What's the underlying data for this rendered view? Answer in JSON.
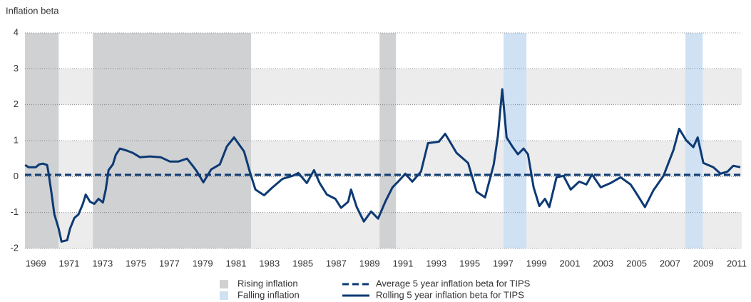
{
  "chart_data": {
    "type": "line",
    "y_label": "Inflation beta",
    "xlim": [
      1968.35,
      2011.3
    ],
    "xticks": [
      1969,
      1971,
      1973,
      1975,
      1977,
      1979,
      1981,
      1983,
      1985,
      1987,
      1989,
      1991,
      1993,
      1995,
      1997,
      1999,
      2001,
      2003,
      2005,
      2007,
      2009,
      2011
    ],
    "ylim": [
      -2,
      4
    ],
    "yticks": [
      -2,
      -1,
      0,
      1,
      2,
      3,
      4
    ],
    "grid": true,
    "banded": true,
    "shaded": [
      {
        "name": "Rising inflation",
        "color": "#d0d1d3",
        "ranges": [
          [
            1968.35,
            1970.37
          ],
          [
            1972.42,
            1981.9
          ],
          [
            1989.6,
            1990.58
          ]
        ]
      },
      {
        "name": "Falling inflation",
        "color": "#cfe1f3",
        "ranges": [
          [
            1997.03,
            1998.4
          ],
          [
            2007.93,
            2008.96
          ]
        ]
      }
    ],
    "series": [
      {
        "name": "Average 5 year inflation beta for TIPS",
        "color": "#0d3a73",
        "style": "dashed",
        "value": 0.05
      },
      {
        "name": "Rolling 5 year inflation beta for TIPS",
        "color": "#0d3a73",
        "style": "solid",
        "x": [
          1968.36,
          1968.57,
          1969.0,
          1969.21,
          1969.43,
          1969.68,
          1969.77,
          1969.94,
          1970.11,
          1970.37,
          1970.54,
          1970.88,
          1971.05,
          1971.31,
          1971.56,
          1971.82,
          1971.99,
          1972.25,
          1972.5,
          1972.76,
          1973.02,
          1973.19,
          1973.36,
          1973.62,
          1973.79,
          1974.04,
          1974.47,
          1974.81,
          1975.24,
          1975.84,
          1976.48,
          1977.03,
          1977.55,
          1978.06,
          1978.4,
          1978.66,
          1979.04,
          1979.51,
          1980.03,
          1980.45,
          1980.88,
          1981.48,
          1981.82,
          1982.16,
          1982.68,
          1983.19,
          1983.79,
          1984.38,
          1984.73,
          1985.24,
          1985.67,
          1986.01,
          1986.44,
          1986.95,
          1987.29,
          1987.72,
          1987.89,
          1988.23,
          1988.66,
          1989.09,
          1989.51,
          1989.94,
          1990.37,
          1990.79,
          1991.14,
          1991.56,
          1992.08,
          1992.5,
          1993.15,
          1993.53,
          1994.21,
          1994.9,
          1995.41,
          1995.92,
          1996.44,
          1996.69,
          1996.95,
          1997.21,
          1997.55,
          1997.89,
          1998.23,
          1998.49,
          1998.83,
          1999.17,
          1999.51,
          1999.77,
          2000.2,
          2000.62,
          2001.05,
          2001.56,
          2001.99,
          2002.33,
          2002.85,
          2003.44,
          2004.04,
          2004.64,
          2004.98,
          2005.5,
          2006.01,
          2006.61,
          2007.21,
          2007.55,
          2007.97,
          2008.4,
          2008.66,
          2009.0,
          2009.6,
          2010.03,
          2010.45,
          2010.79,
          2011.22
        ],
        "values": [
          0.32,
          0.26,
          0.26,
          0.34,
          0.36,
          0.32,
          0.08,
          -0.46,
          -1.05,
          -1.45,
          -1.81,
          -1.77,
          -1.45,
          -1.15,
          -1.05,
          -0.76,
          -0.5,
          -0.7,
          -0.76,
          -0.62,
          -0.72,
          -0.36,
          0.18,
          0.34,
          0.6,
          0.78,
          0.72,
          0.66,
          0.54,
          0.56,
          0.54,
          0.42,
          0.42,
          0.5,
          0.3,
          0.14,
          -0.16,
          0.2,
          0.34,
          0.84,
          1.09,
          0.7,
          0.14,
          -0.36,
          -0.52,
          -0.3,
          -0.06,
          0.02,
          0.1,
          -0.18,
          0.18,
          -0.18,
          -0.5,
          -0.62,
          -0.87,
          -0.7,
          -0.36,
          -0.85,
          -1.25,
          -0.97,
          -1.17,
          -0.7,
          -0.3,
          -0.1,
          0.08,
          -0.14,
          0.14,
          0.93,
          0.97,
          1.19,
          0.66,
          0.38,
          -0.42,
          -0.58,
          0.34,
          1.13,
          2.43,
          1.09,
          0.84,
          0.62,
          0.78,
          0.62,
          -0.3,
          -0.82,
          -0.62,
          -0.85,
          -0.02,
          0.02,
          -0.36,
          -0.14,
          -0.22,
          0.06,
          -0.3,
          -0.18,
          -0.02,
          -0.22,
          -0.46,
          -0.85,
          -0.38,
          0.02,
          0.74,
          1.33,
          1.01,
          0.82,
          1.09,
          0.38,
          0.26,
          0.08,
          0.14,
          0.3,
          0.26
        ]
      }
    ]
  }
}
